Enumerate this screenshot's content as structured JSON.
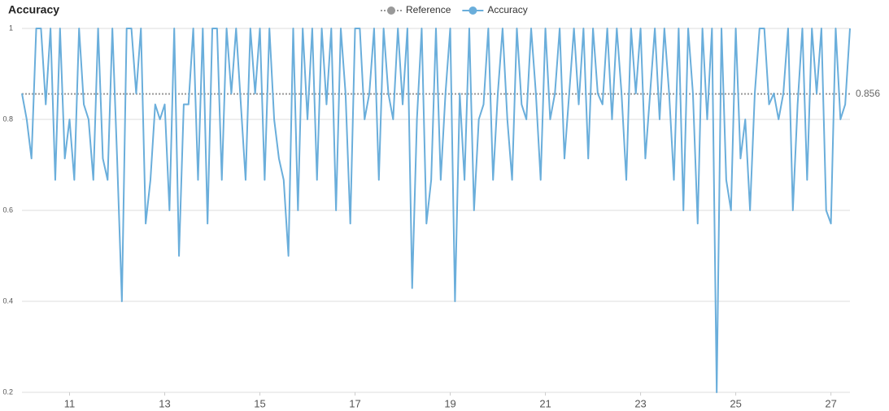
{
  "chart_data": {
    "type": "line",
    "title": "Accuracy",
    "xlim": [
      10,
      27.4
    ],
    "xticks": [
      11,
      13,
      15,
      17,
      19,
      21,
      23,
      25,
      27
    ],
    "ylim": [
      0.2,
      1
    ],
    "yticks": [
      0.2,
      0.4,
      0.6,
      0.8,
      1
    ],
    "grid": true,
    "series": [
      {
        "name": "Reference",
        "color": "#999999",
        "dashed": true,
        "x": [
          10,
          27.4
        ],
        "values": [
          0.856,
          0.856
        ]
      },
      {
        "name": "Accuracy",
        "color": "#6aaedb",
        "x": [
          10.0,
          10.1,
          10.2,
          10.3,
          10.4,
          10.5,
          10.6,
          10.7,
          10.8,
          10.9,
          11.0,
          11.1,
          11.2,
          11.3,
          11.4,
          11.5,
          11.6,
          11.7,
          11.8,
          11.9,
          12.0,
          12.1,
          12.2,
          12.3,
          12.4,
          12.5,
          12.6,
          12.7,
          12.8,
          12.9,
          13.0,
          13.1,
          13.2,
          13.3,
          13.4,
          13.5,
          13.6,
          13.7,
          13.8,
          13.9,
          14.0,
          14.1,
          14.2,
          14.3,
          14.4,
          14.5,
          14.6,
          14.7,
          14.8,
          14.9,
          15.0,
          15.1,
          15.2,
          15.3,
          15.4,
          15.5,
          15.6,
          15.7,
          15.8,
          15.9,
          16.0,
          16.1,
          16.2,
          16.3,
          16.4,
          16.5,
          16.6,
          16.7,
          16.8,
          16.9,
          17.0,
          17.1,
          17.2,
          17.3,
          17.4,
          17.5,
          17.6,
          17.7,
          17.8,
          17.9,
          18.0,
          18.1,
          18.2,
          18.3,
          18.4,
          18.5,
          18.6,
          18.7,
          18.8,
          18.9,
          19.0,
          19.1,
          19.2,
          19.3,
          19.4,
          19.5,
          19.6,
          19.7,
          19.8,
          19.9,
          20.0,
          20.1,
          20.2,
          20.3,
          20.4,
          20.5,
          20.6,
          20.7,
          20.8,
          20.9,
          21.0,
          21.1,
          21.2,
          21.3,
          21.4,
          21.5,
          21.6,
          21.7,
          21.8,
          21.9,
          22.0,
          22.1,
          22.2,
          22.3,
          22.4,
          22.5,
          22.6,
          22.7,
          22.8,
          22.9,
          23.0,
          23.1,
          23.2,
          23.3,
          23.4,
          23.5,
          23.6,
          23.7,
          23.8,
          23.9,
          24.0,
          24.1,
          24.2,
          24.3,
          24.4,
          24.5,
          24.6,
          24.7,
          24.8,
          24.9,
          25.0,
          25.1,
          25.2,
          25.3,
          25.4,
          25.5,
          25.6,
          25.7,
          25.8,
          25.9,
          26.0,
          26.1,
          26.2,
          26.3,
          26.4,
          26.5,
          26.6,
          26.7,
          26.8,
          26.9,
          27.0,
          27.1,
          27.2,
          27.3,
          27.4
        ],
        "values": [
          0.857,
          0.8,
          0.714,
          1,
          1,
          0.833,
          1,
          0.667,
          1,
          0.714,
          0.8,
          0.667,
          1,
          0.833,
          0.8,
          0.667,
          1,
          0.714,
          0.667,
          1,
          0.714,
          0.4,
          1,
          1,
          0.857,
          1,
          0.571,
          0.667,
          0.833,
          0.8,
          0.833,
          0.6,
          1,
          0.5,
          0.833,
          0.833,
          1,
          0.667,
          1,
          0.571,
          1,
          1,
          0.667,
          1,
          0.857,
          1,
          0.833,
          0.667,
          1,
          0.857,
          1,
          0.667,
          1,
          0.8,
          0.714,
          0.667,
          0.5,
          1,
          0.6,
          1,
          0.8,
          1,
          0.667,
          1,
          0.833,
          1,
          0.6,
          1,
          0.857,
          0.571,
          1,
          1,
          0.8,
          0.857,
          1,
          0.667,
          1,
          0.857,
          0.8,
          1,
          0.833,
          1,
          0.429,
          0.8,
          1,
          0.571,
          0.667,
          1,
          0.667,
          0.857,
          1,
          0.4,
          0.857,
          0.667,
          1,
          0.6,
          0.8,
          0.833,
          1,
          0.667,
          0.857,
          1,
          0.8,
          0.667,
          1,
          0.833,
          0.8,
          1,
          0.857,
          0.667,
          1,
          0.8,
          0.857,
          1,
          0.714,
          0.857,
          1,
          0.833,
          1,
          0.714,
          1,
          0.857,
          0.833,
          1,
          0.8,
          1,
          0.857,
          0.667,
          1,
          0.857,
          1,
          0.714,
          0.857,
          1,
          0.8,
          1,
          0.857,
          0.667,
          1,
          0.6,
          1,
          0.857,
          0.571,
          1,
          0.8,
          1,
          0.2,
          1,
          0.667,
          0.6,
          1,
          0.714,
          0.8,
          0.6,
          0.857,
          1,
          1,
          0.833,
          0.857,
          0.8,
          0.857,
          1,
          0.6,
          0.833,
          1,
          0.667,
          1,
          0.857,
          1,
          0.6,
          0.571,
          1,
          0.8,
          0.833,
          1
        ]
      }
    ]
  }
}
